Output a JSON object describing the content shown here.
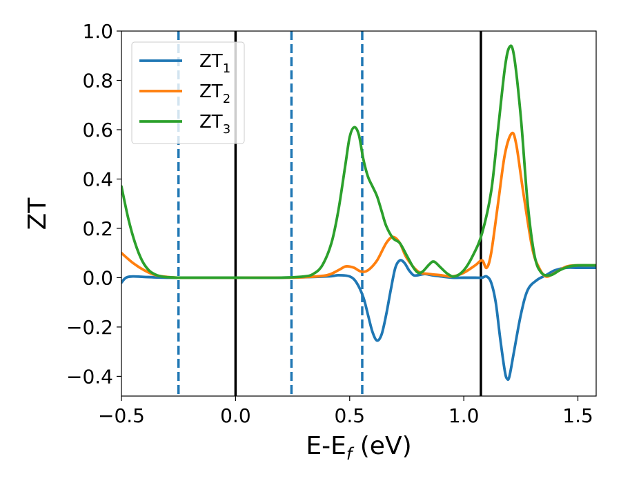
{
  "chart_data": {
    "type": "line",
    "title": "",
    "xlabel": {
      "main": "E-E",
      "sub": "f",
      "suffix": " (eV)"
    },
    "ylabel": "ZT",
    "xlim": [
      -0.5,
      1.58
    ],
    "ylim": [
      -0.48,
      1.0
    ],
    "xticks": [
      -0.5,
      0.0,
      0.5,
      1.0,
      1.5
    ],
    "xtick_labels": [
      "−0.5",
      "0.0",
      "0.5",
      "1.0",
      "1.5"
    ],
    "yticks": [
      -0.4,
      -0.2,
      0.0,
      0.2,
      0.4,
      0.6,
      0.8,
      1.0
    ],
    "ytick_labels": [
      "−0.4",
      "−0.2",
      "0.0",
      "0.2",
      "0.4",
      "0.6",
      "0.8",
      "1.0"
    ],
    "grid": false,
    "legend_position": "top-left",
    "vlines": [
      {
        "x": -0.25,
        "style": "dashed",
        "color": "#1f77b4"
      },
      {
        "x": 0.0,
        "style": "solid",
        "color": "#000000"
      },
      {
        "x": 0.245,
        "style": "dashed",
        "color": "#1f77b4"
      },
      {
        "x": 0.555,
        "style": "dashed",
        "color": "#1f77b4"
      },
      {
        "x": 1.075,
        "style": "solid",
        "color": "#000000"
      }
    ],
    "series": [
      {
        "name": "ZT",
        "sub": "1",
        "color": "#1f77b4",
        "x": [
          -0.5,
          -0.48,
          -0.45,
          -0.4,
          -0.3,
          -0.2,
          0.0,
          0.2,
          0.4,
          0.45,
          0.5,
          0.53,
          0.56,
          0.58,
          0.6,
          0.62,
          0.64,
          0.66,
          0.68,
          0.7,
          0.72,
          0.74,
          0.76,
          0.78,
          0.8,
          0.83,
          0.86,
          0.9,
          0.95,
          1.0,
          1.05,
          1.08,
          1.1,
          1.12,
          1.14,
          1.16,
          1.18,
          1.19,
          1.2,
          1.22,
          1.25,
          1.28,
          1.32,
          1.36,
          1.4,
          1.45,
          1.5,
          1.58
        ],
        "y": [
          -0.02,
          0.0,
          0.005,
          0.003,
          0.0,
          0.0,
          0.0,
          0.0,
          0.005,
          0.01,
          0.005,
          -0.02,
          -0.08,
          -0.15,
          -0.22,
          -0.255,
          -0.23,
          -0.15,
          -0.05,
          0.04,
          0.07,
          0.06,
          0.03,
          0.01,
          0.01,
          0.015,
          0.01,
          0.005,
          0.0,
          0.0,
          0.0,
          0.0,
          0.005,
          -0.02,
          -0.1,
          -0.25,
          -0.38,
          -0.41,
          -0.4,
          -0.3,
          -0.15,
          -0.05,
          -0.01,
          0.01,
          0.03,
          0.04,
          0.04,
          0.04
        ]
      },
      {
        "name": "ZT",
        "sub": "2",
        "color": "#ff7f0e",
        "x": [
          -0.5,
          -0.45,
          -0.4,
          -0.35,
          -0.3,
          -0.25,
          -0.2,
          0.0,
          0.2,
          0.3,
          0.4,
          0.45,
          0.48,
          0.5,
          0.52,
          0.55,
          0.58,
          0.62,
          0.66,
          0.69,
          0.72,
          0.75,
          0.8,
          0.85,
          0.9,
          0.95,
          1.0,
          1.05,
          1.08,
          1.1,
          1.12,
          1.15,
          1.18,
          1.21,
          1.23,
          1.26,
          1.3,
          1.33,
          1.36,
          1.4,
          1.45,
          1.5,
          1.58
        ],
        "y": [
          0.1,
          0.06,
          0.03,
          0.01,
          0.003,
          0.0,
          0.0,
          0.0,
          0.0,
          0.002,
          0.01,
          0.03,
          0.045,
          0.045,
          0.04,
          0.025,
          0.03,
          0.07,
          0.14,
          0.165,
          0.14,
          0.08,
          0.025,
          0.015,
          0.01,
          0.005,
          0.02,
          0.05,
          0.07,
          0.04,
          0.1,
          0.3,
          0.5,
          0.585,
          0.54,
          0.35,
          0.12,
          0.04,
          0.005,
          0.02,
          0.045,
          0.05,
          0.05
        ]
      },
      {
        "name": "ZT",
        "sub": "3",
        "color": "#2ca02c",
        "x": [
          -0.5,
          -0.47,
          -0.44,
          -0.41,
          -0.38,
          -0.35,
          -0.32,
          -0.28,
          -0.25,
          -0.2,
          0.0,
          0.2,
          0.3,
          0.34,
          0.38,
          0.42,
          0.45,
          0.48,
          0.5,
          0.52,
          0.54,
          0.56,
          0.58,
          0.6,
          0.62,
          0.64,
          0.66,
          0.69,
          0.72,
          0.75,
          0.78,
          0.8,
          0.82,
          0.85,
          0.87,
          0.9,
          0.93,
          0.96,
          1.0,
          1.04,
          1.08,
          1.12,
          1.15,
          1.18,
          1.2,
          1.22,
          1.25,
          1.28,
          1.31,
          1.34,
          1.38,
          1.42,
          1.46,
          1.5,
          1.58
        ],
        "y": [
          0.37,
          0.24,
          0.14,
          0.07,
          0.03,
          0.012,
          0.004,
          0.001,
          0.0,
          0.0,
          0.0,
          0.0,
          0.005,
          0.015,
          0.05,
          0.14,
          0.27,
          0.45,
          0.57,
          0.61,
          0.58,
          0.48,
          0.41,
          0.37,
          0.33,
          0.27,
          0.21,
          0.16,
          0.14,
          0.09,
          0.04,
          0.02,
          0.025,
          0.055,
          0.065,
          0.04,
          0.015,
          0.005,
          0.03,
          0.09,
          0.18,
          0.35,
          0.6,
          0.85,
          0.935,
          0.9,
          0.65,
          0.3,
          0.09,
          0.02,
          0.01,
          0.03,
          0.045,
          0.05,
          0.05
        ]
      }
    ]
  }
}
